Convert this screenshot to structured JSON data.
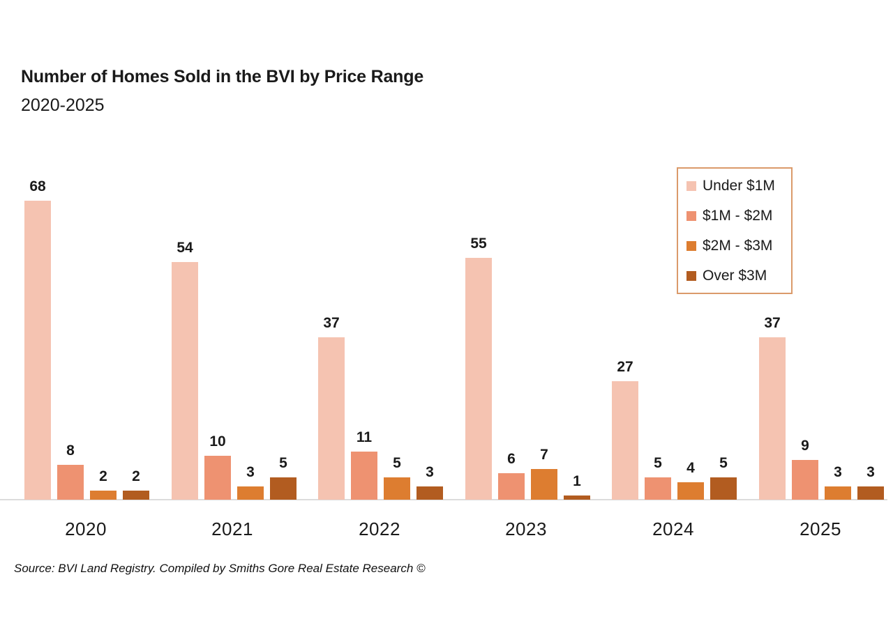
{
  "chart_data": {
    "type": "bar",
    "title": "Number of Homes Sold in the BVI by Price Range",
    "subtitle": "2020-2025",
    "categories": [
      "2020",
      "2021",
      "2022",
      "2023",
      "2024",
      "2025"
    ],
    "series": [
      {
        "name": "Under $1M",
        "color": "#f5c3b1",
        "values": [
          68,
          54,
          37,
          55,
          27,
          37
        ]
      },
      {
        "name": "$1M - $2M",
        "color": "#ee9271",
        "values": [
          8,
          10,
          11,
          6,
          5,
          9
        ]
      },
      {
        "name": "$2M - $3M",
        "color": "#dd7d30",
        "values": [
          2,
          3,
          5,
          7,
          4,
          3
        ]
      },
      {
        "name": "Over $3M",
        "color": "#b25c20",
        "values": [
          2,
          5,
          3,
          1,
          5,
          3
        ]
      }
    ],
    "ylim": [
      0,
      72
    ],
    "grid": false,
    "legend_position": "top-right",
    "data_labels": true,
    "xlabel": "",
    "ylabel": ""
  },
  "source": {
    "text": "Source: BVI Land Registry. Compiled by Smiths Gore Real Estate Research ©"
  },
  "colors": {
    "axis_line": "#dcdcdc",
    "legend_border": "#db9a6a",
    "text": "#1a1a1a"
  }
}
